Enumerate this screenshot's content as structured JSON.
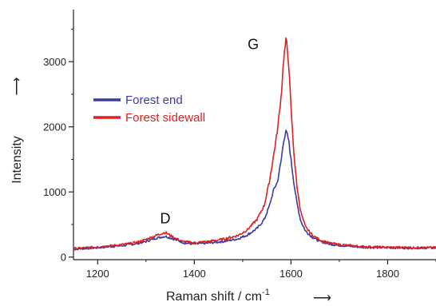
{
  "chart_data": {
    "type": "line",
    "xlabel": "Raman shift / cm",
    "xlabel_superscript": "-1",
    "xlabel_arrow": "⟶",
    "ylabel": "Intensity",
    "ylabel_arrow": "⟶",
    "xlim": [
      1150,
      1900
    ],
    "ylim": [
      -40,
      3800
    ],
    "x_ticks": [
      1200,
      1400,
      1600,
      1800
    ],
    "y_ticks": [
      0,
      1000,
      2000,
      3000
    ],
    "x_minor_step": 100,
    "y_minor_step": 500,
    "grid": false,
    "legend_position": "top-left",
    "annotations": [
      {
        "text": "D",
        "x": 1340,
        "y": 520
      },
      {
        "text": "G",
        "x": 1522,
        "y": 3190
      }
    ],
    "series": [
      {
        "name": "Forest end",
        "color": "#3a3aa0",
        "x": [
          1150,
          1200,
          1250,
          1280,
          1300,
          1320,
          1340,
          1360,
          1380,
          1400,
          1430,
          1460,
          1490,
          1510,
          1530,
          1545,
          1555,
          1565,
          1572,
          1580,
          1585,
          1590,
          1595,
          1600,
          1605,
          1612,
          1620,
          1630,
          1645,
          1660,
          1680,
          1700,
          1750,
          1800,
          1850,
          1900
        ],
        "y": [
          120,
          145,
          175,
          205,
          240,
          290,
          320,
          270,
          215,
          200,
          215,
          240,
          280,
          340,
          440,
          580,
          780,
          1050,
          1150,
          1500,
          1800,
          1930,
          1800,
          1500,
          1200,
          840,
          560,
          400,
          300,
          240,
          200,
          180,
          150,
          145,
          140,
          140
        ]
      },
      {
        "name": "Forest sidewall",
        "color": "#e02020",
        "x": [
          1150,
          1200,
          1250,
          1280,
          1300,
          1320,
          1340,
          1355,
          1375,
          1400,
          1430,
          1460,
          1490,
          1510,
          1530,
          1545,
          1555,
          1565,
          1572,
          1580,
          1585,
          1590,
          1595,
          1600,
          1605,
          1612,
          1620,
          1630,
          1645,
          1660,
          1680,
          1700,
          1750,
          1800,
          1850,
          1900
        ],
        "y": [
          130,
          155,
          190,
          225,
          270,
          330,
          380,
          310,
          240,
          220,
          240,
          275,
          330,
          420,
          580,
          800,
          1150,
          1600,
          1950,
          2500,
          3050,
          3350,
          3000,
          2300,
          1700,
          1100,
          700,
          460,
          330,
          260,
          215,
          190,
          160,
          150,
          145,
          145
        ]
      }
    ]
  }
}
